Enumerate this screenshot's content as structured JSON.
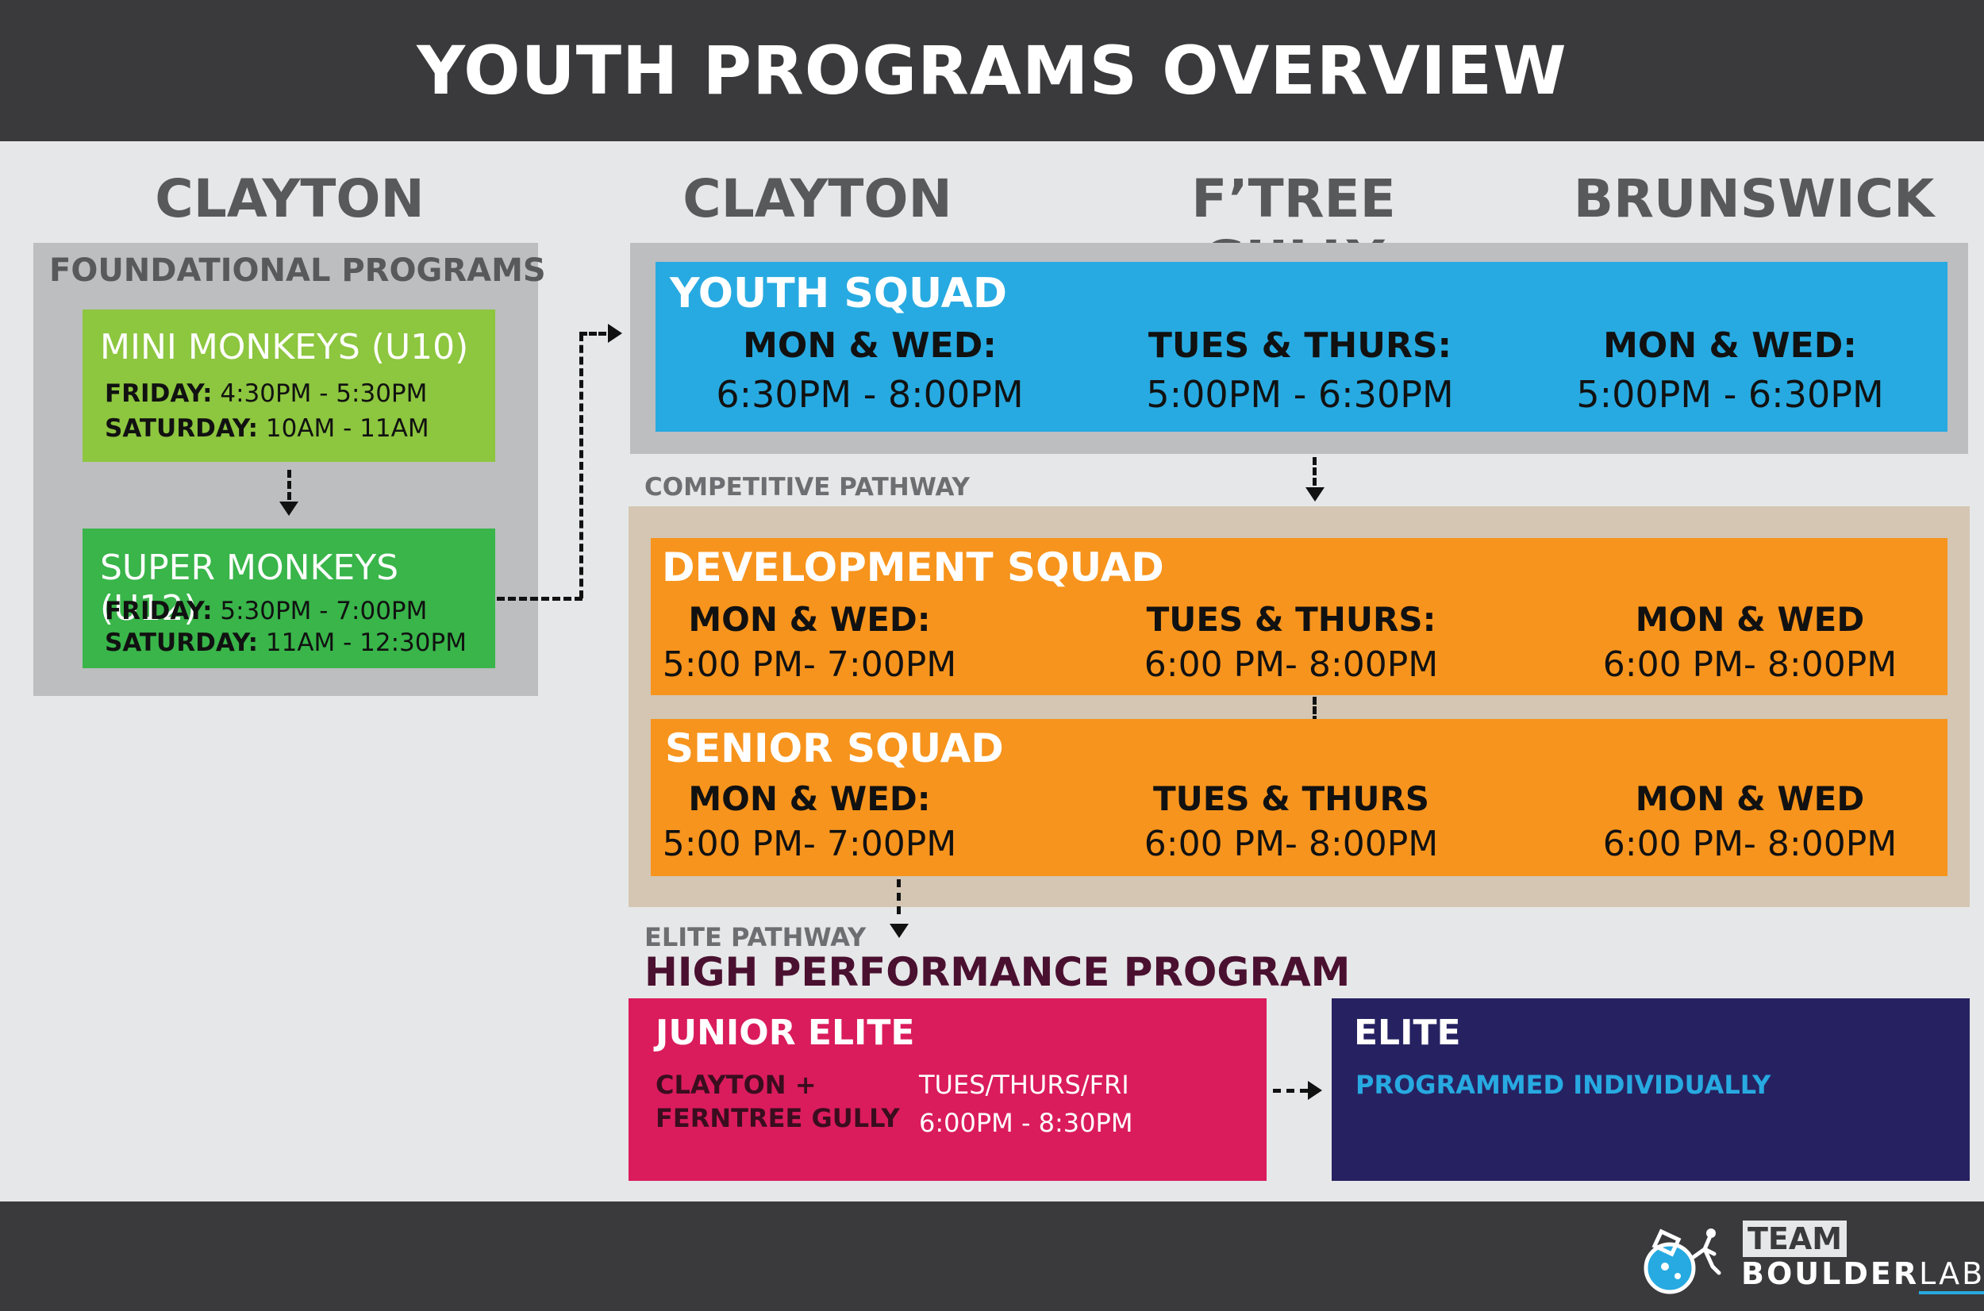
{
  "header": {
    "title": "YOUTH PROGRAMS OVERVIEW"
  },
  "locations": {
    "foundational": "CLAYTON",
    "col1": "CLAYTON",
    "col2": "F’TREE GULLY",
    "col3": "BRUNSWICK"
  },
  "foundational": {
    "title": "FOUNDATIONAL PROGRAMS",
    "mini": {
      "name": "MINI MONKEYS (U10)",
      "rows": [
        {
          "day": "FRIDAY:",
          "time": "4:30PM - 5:30PM"
        },
        {
          "day": "SATURDAY:",
          "time": "10AM - 11AM"
        }
      ]
    },
    "super": {
      "name": "SUPER MONKEYS (U12)",
      "rows": [
        {
          "day": "FRIDAY:",
          "time": "5:30PM - 7:00PM"
        },
        {
          "day": "SATURDAY:",
          "time": "11AM - 12:30PM"
        }
      ]
    }
  },
  "youth_squad": {
    "title": "YOUTH SQUAD",
    "cols": [
      {
        "days": "MON & WED:",
        "time": "6:30PM - 8:00PM"
      },
      {
        "days": "TUES & THURS:",
        "time": "5:00PM - 6:30PM"
      },
      {
        "days": "MON & WED:",
        "time": "5:00PM - 6:30PM"
      }
    ]
  },
  "competitive": {
    "label": "COMPETITIVE PATHWAY",
    "development": {
      "title": "DEVELOPMENT SQUAD",
      "cols": [
        {
          "days": "MON & WED:",
          "time": "5:00 PM- 7:00PM"
        },
        {
          "days": "TUES & THURS:",
          "time": "6:00 PM- 8:00PM"
        },
        {
          "days": "MON & WED",
          "time": "6:00 PM- 8:00PM"
        }
      ]
    },
    "senior": {
      "title": "SENIOR SQUAD",
      "cols": [
        {
          "days": "MON & WED:",
          "time": "5:00 PM- 7:00PM"
        },
        {
          "days": "TUES & THURS",
          "time": "6:00 PM- 8:00PM"
        },
        {
          "days": "MON & WED",
          "time": "6:00 PM- 8:00PM"
        }
      ]
    }
  },
  "elite": {
    "label": "ELITE PATHWAY",
    "program": "HIGH PERFORMANCE PROGRAM",
    "junior": {
      "title": "JUNIOR ELITE",
      "location_line1": "CLAYTON +",
      "location_line2": "FERNTREE GULLY",
      "days": "TUES/THURS/FRI",
      "time": "6:00PM - 8:30PM"
    },
    "elite_box": {
      "title": "ELITE",
      "note": "PROGRAMMED INDIVIDUALLY"
    }
  },
  "logo": {
    "team": "TEAM",
    "boulder": "BOULDER",
    "lab": "LAB"
  },
  "colors": {
    "header": "#3a3a3c",
    "background": "#e6e7e8",
    "mini": "#8dc63f",
    "super": "#39b54a",
    "youth": "#27aae1",
    "squad": "#f7941d",
    "junior_elite": "#da1c5c",
    "elite": "#262262",
    "hpp_text": "#4a1030"
  }
}
